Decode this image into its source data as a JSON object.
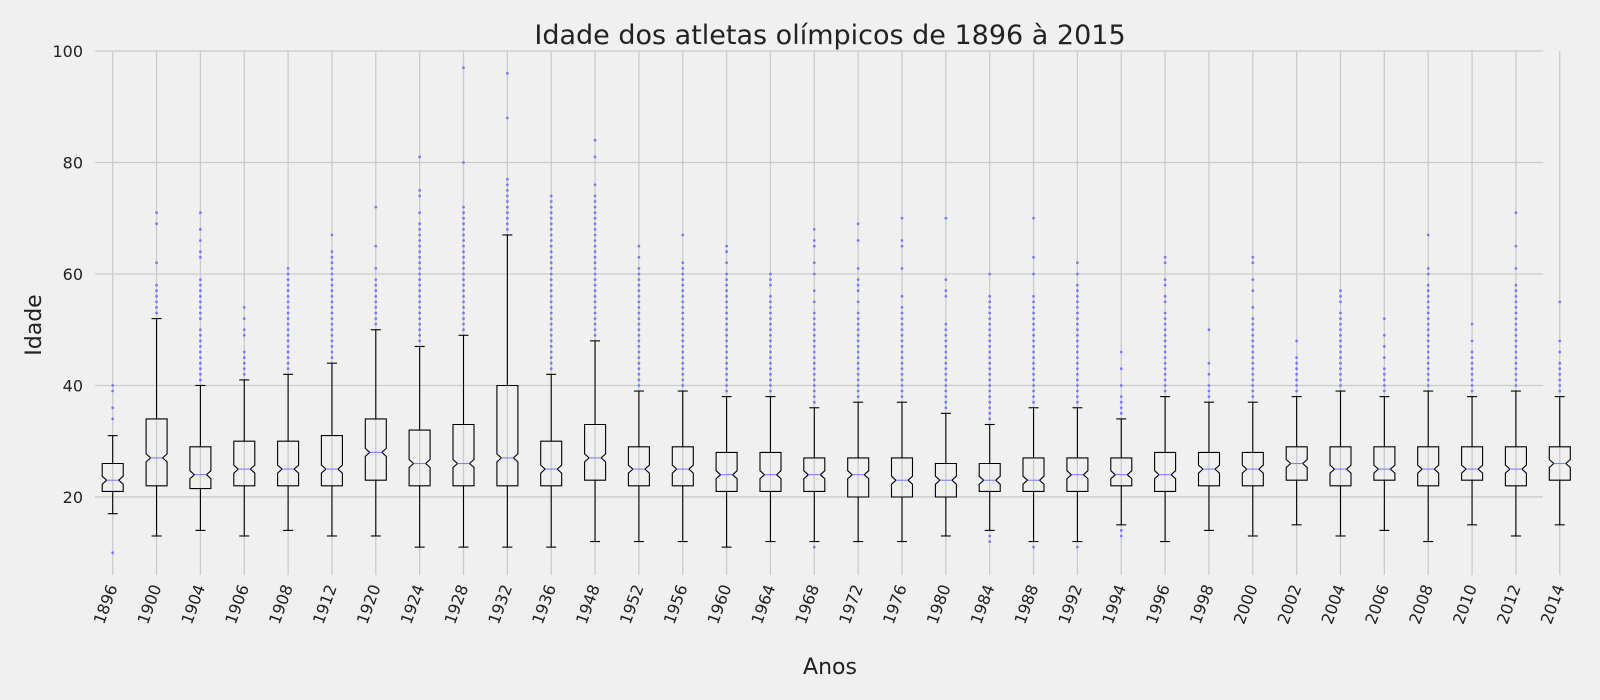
{
  "chart_data": {
    "type": "boxplot",
    "title": "Idade dos atletas olímpicos de 1896 à 2015",
    "xlabel": "Anos",
    "ylabel": "Idade",
    "ylim": [
      6,
      100
    ],
    "yticks": [
      20,
      40,
      60,
      80,
      100
    ],
    "grid": true,
    "notched": true,
    "colors": {
      "background": "#f0f0f0",
      "box": "#000000",
      "median": "#7f7fff",
      "outlier": "#7a7aff",
      "grid": "#cbcbcb"
    },
    "categories": [
      "1896",
      "1900",
      "1904",
      "1906",
      "1908",
      "1912",
      "1920",
      "1924",
      "1928",
      "1932",
      "1936",
      "1948",
      "1952",
      "1956",
      "1960",
      "1964",
      "1968",
      "1972",
      "1976",
      "1980",
      "1984",
      "1988",
      "1992",
      "1994",
      "1996",
      "1998",
      "2000",
      "2002",
      "2004",
      "2006",
      "2008",
      "2010",
      "2012",
      "2014"
    ],
    "boxes": [
      {
        "whislo": 17,
        "q1": 21,
        "med": 23,
        "q3": 26,
        "whishi": 31,
        "fliers": [
          10,
          34,
          36,
          39,
          40
        ]
      },
      {
        "whislo": 13,
        "q1": 22,
        "med": 27,
        "q3": 34,
        "whishi": 52,
        "fliers": [
          53,
          54,
          55,
          56,
          57,
          58,
          62,
          69,
          71
        ]
      },
      {
        "whislo": 14,
        "q1": 21.5,
        "med": 24,
        "q3": 29,
        "whishi": 40,
        "fliers": [
          41,
          42,
          43,
          44,
          45,
          46,
          47,
          48,
          49,
          50,
          52,
          53,
          54,
          55,
          56,
          57,
          58,
          59,
          63,
          64,
          66,
          68,
          71
        ]
      },
      {
        "whislo": 13,
        "q1": 22,
        "med": 25,
        "q3": 30,
        "whishi": 41,
        "fliers": [
          42,
          43,
          44,
          45,
          46,
          49,
          50,
          52,
          54
        ]
      },
      {
        "whislo": 14,
        "q1": 22,
        "med": 25,
        "q3": 30,
        "whishi": 42,
        "fliers": [
          43,
          44,
          45,
          46,
          47,
          48,
          49,
          50,
          51,
          52,
          53,
          54,
          55,
          56,
          57,
          58,
          59,
          60,
          61
        ]
      },
      {
        "whislo": 13,
        "q1": 22,
        "med": 25,
        "q3": 31,
        "whishi": 44,
        "fliers": [
          45,
          46,
          47,
          48,
          49,
          50,
          51,
          52,
          53,
          54,
          55,
          56,
          57,
          58,
          59,
          60,
          61,
          62,
          63,
          64,
          67
        ]
      },
      {
        "whislo": 13,
        "q1": 23,
        "med": 28,
        "q3": 34,
        "whishi": 50,
        "fliers": [
          51,
          52,
          53,
          54,
          55,
          56,
          57,
          58,
          59,
          61,
          65,
          72
        ]
      },
      {
        "whislo": 11,
        "q1": 22,
        "med": 26,
        "q3": 32,
        "whishi": 47,
        "fliers": [
          48,
          49,
          50,
          51,
          52,
          53,
          54,
          55,
          56,
          57,
          58,
          59,
          60,
          61,
          62,
          63,
          64,
          65,
          66,
          67,
          68,
          69,
          71,
          74,
          75,
          81
        ]
      },
      {
        "whislo": 11,
        "q1": 22,
        "med": 26,
        "q3": 33,
        "whishi": 49,
        "fliers": [
          50,
          51,
          52,
          53,
          54,
          55,
          56,
          57,
          58,
          59,
          60,
          61,
          62,
          63,
          64,
          65,
          66,
          67,
          68,
          69,
          70,
          71,
          72,
          80,
          97
        ]
      },
      {
        "whislo": 11,
        "q1": 22,
        "med": 27,
        "q3": 40,
        "whishi": 67,
        "fliers": [
          68,
          69,
          70,
          71,
          72,
          73,
          74,
          75,
          76,
          77,
          88,
          96
        ]
      },
      {
        "whislo": 11,
        "q1": 22,
        "med": 25,
        "q3": 30,
        "whishi": 42,
        "fliers": [
          43,
          44,
          45,
          46,
          47,
          48,
          49,
          50,
          51,
          52,
          53,
          54,
          55,
          56,
          57,
          58,
          59,
          60,
          61,
          62,
          63,
          64,
          65,
          66,
          67,
          68,
          69,
          70,
          71,
          72,
          73,
          74
        ]
      },
      {
        "whislo": 12,
        "q1": 23,
        "med": 27,
        "q3": 33,
        "whishi": 48,
        "fliers": [
          49,
          50,
          51,
          52,
          53,
          54,
          55,
          56,
          57,
          58,
          59,
          60,
          61,
          62,
          63,
          64,
          65,
          66,
          67,
          68,
          69,
          70,
          71,
          72,
          73,
          74,
          76,
          81,
          84
        ]
      },
      {
        "whislo": 12,
        "q1": 22,
        "med": 25,
        "q3": 29,
        "whishi": 39,
        "fliers": [
          40,
          41,
          42,
          43,
          44,
          45,
          46,
          47,
          48,
          49,
          50,
          51,
          52,
          53,
          54,
          55,
          56,
          57,
          58,
          59,
          60,
          61,
          63,
          65
        ]
      },
      {
        "whislo": 12,
        "q1": 22,
        "med": 25,
        "q3": 29,
        "whishi": 39,
        "fliers": [
          40,
          41,
          42,
          43,
          44,
          45,
          46,
          47,
          48,
          49,
          50,
          51,
          52,
          53,
          54,
          55,
          56,
          57,
          58,
          59,
          60,
          61,
          62,
          67
        ]
      },
      {
        "whislo": 11,
        "q1": 21,
        "med": 24,
        "q3": 28,
        "whishi": 38,
        "fliers": [
          39,
          40,
          41,
          42,
          43,
          44,
          45,
          46,
          47,
          48,
          49,
          50,
          51,
          52,
          53,
          54,
          55,
          56,
          57,
          58,
          59,
          60,
          62,
          64,
          65
        ]
      },
      {
        "whislo": 12,
        "q1": 21,
        "med": 24,
        "q3": 28,
        "whishi": 38,
        "fliers": [
          39,
          40,
          41,
          42,
          43,
          44,
          45,
          46,
          47,
          48,
          49,
          50,
          51,
          52,
          53,
          54,
          55,
          56,
          58,
          59,
          60
        ]
      },
      {
        "whislo": 12,
        "q1": 21,
        "med": 24,
        "q3": 27,
        "whishi": 36,
        "fliers": [
          11,
          37,
          38,
          39,
          40,
          41,
          42,
          43,
          44,
          45,
          46,
          47,
          48,
          49,
          50,
          51,
          52,
          53,
          55,
          57,
          60,
          62,
          65,
          66,
          68
        ]
      },
      {
        "whislo": 12,
        "q1": 20,
        "med": 24,
        "q3": 27,
        "whishi": 37,
        "fliers": [
          38,
          39,
          40,
          41,
          42,
          43,
          44,
          45,
          46,
          47,
          48,
          49,
          50,
          51,
          52,
          53,
          55,
          57,
          58,
          59,
          61,
          66,
          69
        ]
      },
      {
        "whislo": 12,
        "q1": 20,
        "med": 23,
        "q3": 27,
        "whishi": 37,
        "fliers": [
          38,
          39,
          40,
          41,
          42,
          43,
          44,
          45,
          46,
          47,
          48,
          49,
          50,
          51,
          52,
          53,
          54,
          56,
          61,
          65,
          66,
          70
        ]
      },
      {
        "whislo": 13,
        "q1": 20,
        "med": 23,
        "q3": 26,
        "whishi": 35,
        "fliers": [
          36,
          37,
          38,
          39,
          40,
          41,
          42,
          43,
          44,
          45,
          46,
          47,
          48,
          49,
          50,
          51,
          56,
          57,
          59,
          70
        ]
      },
      {
        "whislo": 14,
        "q1": 21,
        "med": 23,
        "q3": 26,
        "whishi": 33,
        "fliers": [
          12,
          13,
          34,
          35,
          36,
          37,
          38,
          39,
          40,
          41,
          42,
          43,
          44,
          45,
          46,
          47,
          48,
          49,
          50,
          51,
          52,
          53,
          54,
          55,
          56,
          60
        ]
      },
      {
        "whislo": 12,
        "q1": 21,
        "med": 23,
        "q3": 27,
        "whishi": 36,
        "fliers": [
          11,
          37,
          38,
          39,
          40,
          41,
          42,
          43,
          44,
          45,
          46,
          47,
          48,
          49,
          50,
          51,
          52,
          53,
          54,
          55,
          56,
          60,
          63,
          70
        ]
      },
      {
        "whislo": 12,
        "q1": 21,
        "med": 24,
        "q3": 27,
        "whishi": 36,
        "fliers": [
          11,
          37,
          38,
          39,
          40,
          41,
          42,
          43,
          44,
          45,
          46,
          47,
          48,
          49,
          50,
          51,
          52,
          53,
          54,
          55,
          56,
          57,
          58,
          60,
          62
        ]
      },
      {
        "whislo": 15,
        "q1": 22,
        "med": 24,
        "q3": 27,
        "whishi": 34,
        "fliers": [
          13,
          14,
          35,
          36,
          37,
          38,
          40,
          43,
          46
        ]
      },
      {
        "whislo": 12,
        "q1": 21,
        "med": 24,
        "q3": 28,
        "whishi": 38,
        "fliers": [
          39,
          40,
          41,
          42,
          43,
          44,
          45,
          46,
          47,
          48,
          49,
          50,
          51,
          52,
          53,
          55,
          56,
          58,
          59,
          62,
          63
        ]
      },
      {
        "whislo": 14,
        "q1": 22,
        "med": 25,
        "q3": 28,
        "whishi": 37,
        "fliers": [
          38,
          39,
          40,
          42,
          44,
          50
        ]
      },
      {
        "whislo": 13,
        "q1": 22,
        "med": 25,
        "q3": 28,
        "whishi": 37,
        "fliers": [
          38,
          39,
          40,
          41,
          42,
          43,
          44,
          45,
          46,
          47,
          48,
          49,
          50,
          51,
          52,
          54,
          57,
          59,
          62,
          63
        ]
      },
      {
        "whislo": 15,
        "q1": 23,
        "med": 26,
        "q3": 29,
        "whishi": 38,
        "fliers": [
          39,
          40,
          41,
          42,
          43,
          44,
          45,
          48
        ]
      },
      {
        "whislo": 13,
        "q1": 22,
        "med": 25,
        "q3": 29,
        "whishi": 39,
        "fliers": [
          40,
          41,
          42,
          43,
          44,
          45,
          46,
          47,
          48,
          49,
          50,
          51,
          52,
          53,
          55,
          56,
          57
        ]
      },
      {
        "whislo": 14,
        "q1": 23,
        "med": 25,
        "q3": 29,
        "whishi": 38,
        "fliers": [
          39,
          40,
          41,
          42,
          43,
          45,
          47,
          49,
          52
        ]
      },
      {
        "whislo": 12,
        "q1": 22,
        "med": 25,
        "q3": 29,
        "whishi": 39,
        "fliers": [
          40,
          41,
          42,
          43,
          44,
          45,
          46,
          47,
          48,
          49,
          50,
          51,
          52,
          53,
          54,
          55,
          56,
          57,
          58,
          60,
          61,
          67
        ]
      },
      {
        "whislo": 15,
        "q1": 23,
        "med": 25,
        "q3": 29,
        "whishi": 38,
        "fliers": [
          39,
          40,
          41,
          42,
          43,
          44,
          45,
          46,
          48,
          51
        ]
      },
      {
        "whislo": 13,
        "q1": 22,
        "med": 25,
        "q3": 29,
        "whishi": 39,
        "fliers": [
          40,
          41,
          42,
          43,
          44,
          45,
          46,
          47,
          48,
          49,
          50,
          51,
          52,
          53,
          54,
          55,
          56,
          57,
          58,
          61,
          65,
          71
        ]
      },
      {
        "whislo": 15,
        "q1": 23,
        "med": 26,
        "q3": 29,
        "whishi": 38,
        "fliers": [
          39,
          40,
          41,
          42,
          43,
          44,
          46,
          48,
          55
        ]
      }
    ]
  }
}
